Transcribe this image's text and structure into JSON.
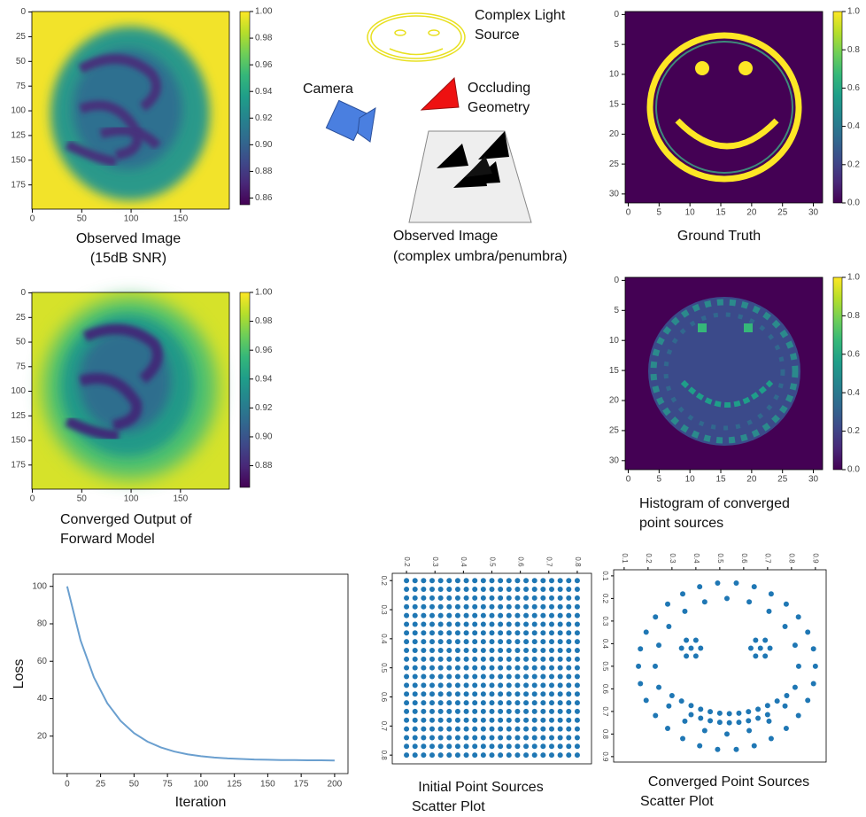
{
  "chart_data": [
    {
      "type": "image",
      "caption": [
        "Observed Image",
        "(15dB SNR)"
      ],
      "xlim": [
        -0.5,
        199.5
      ],
      "ylim": [
        199.5,
        -0.5
      ],
      "xticks": [
        0,
        50,
        100,
        150
      ],
      "yticks": [
        0,
        25,
        50,
        75,
        100,
        125,
        150,
        175
      ],
      "clim": [
        0.855,
        1.0
      ],
      "cticks": [
        0.86,
        0.88,
        {
          "value": 0.9,
          "label": "0.90"
        },
        0.92,
        0.94,
        0.96,
        0.98,
        {
          "value": 1,
          "label": "1.00"
        }
      ]
    },
    {
      "type": "image",
      "caption": [
        "Converged Output of",
        "Forward Model"
      ],
      "xlim": [
        -0.5,
        199.5
      ],
      "ylim": [
        199.5,
        -0.5
      ],
      "xticks": [
        0,
        50,
        100,
        150
      ],
      "yticks": [
        0,
        25,
        50,
        75,
        100,
        125,
        150,
        175
      ],
      "clim": [
        0.865,
        1.0
      ],
      "cticks": [
        0.88,
        {
          "value": 0.9,
          "label": "0.90"
        },
        0.92,
        0.94,
        0.96,
        0.98,
        {
          "value": 1,
          "label": "1.00"
        }
      ]
    },
    {
      "type": "image",
      "caption": [
        "Ground Truth"
      ],
      "xlim": [
        -0.5,
        31.5
      ],
      "ylim": [
        31.5,
        -0.5
      ],
      "xticks": [
        0,
        5,
        10,
        15,
        20,
        25,
        30
      ],
      "yticks": [
        0,
        5,
        10,
        15,
        20,
        25,
        30
      ],
      "clim": [
        0,
        1
      ],
      "cticks": [
        {
          "value": 0,
          "label": "0.0"
        },
        0.2,
        0.4,
        0.6,
        0.8,
        {
          "value": 1,
          "label": "1.0"
        }
      ]
    },
    {
      "type": "image",
      "caption": [
        "Histogram of converged",
        "point sources"
      ],
      "xlim": [
        -0.5,
        31.5
      ],
      "ylim": [
        31.5,
        -0.5
      ],
      "xticks": [
        0,
        5,
        10,
        15,
        20,
        25,
        30
      ],
      "yticks": [
        0,
        5,
        10,
        15,
        20,
        25,
        30
      ],
      "clim": [
        0,
        1
      ],
      "cticks": [
        {
          "value": 0,
          "label": "0.0"
        },
        0.2,
        0.4,
        0.6,
        0.8,
        {
          "value": 1,
          "label": "1.0"
        }
      ]
    },
    {
      "type": "line",
      "xlabel": "Iteration",
      "ylabel": "Loss",
      "color": "#6a9fcf",
      "xlim": [
        -10.5,
        210
      ],
      "ylim": [
        0,
        106.5
      ],
      "xticks": [
        0,
        25,
        50,
        75,
        100,
        125,
        150,
        175,
        200
      ],
      "yticks": [
        20,
        40,
        60,
        80,
        100
      ],
      "x": [
        0,
        10,
        20,
        30,
        40,
        50,
        60,
        70,
        80,
        90,
        100,
        110,
        120,
        130,
        140,
        150,
        160,
        170,
        180,
        190,
        200
      ],
      "y": [
        100,
        71.2,
        51.4,
        37.6,
        28.1,
        21.6,
        17.1,
        14,
        11.8,
        10.3,
        9.3,
        8.6,
        8.1,
        7.8,
        7.5,
        7.4,
        7.2,
        7.2,
        7.1,
        7.1,
        7
      ]
    },
    {
      "type": "scatter",
      "caption": [
        "Initial Point Sources",
        "Scatter Plot"
      ],
      "color": "#1f77b4",
      "xlim": [
        0.15,
        0.85
      ],
      "ylim": [
        0.83,
        0.175
      ],
      "xticks": [
        0.2,
        0.3,
        0.4,
        0.5,
        0.6,
        0.7,
        0.8
      ],
      "yticks": [
        0.2,
        0.3,
        0.4,
        0.5,
        0.6,
        0.7,
        0.8
      ],
      "x": [
        0.2,
        0.2,
        0.2,
        0.2,
        0.2,
        0.2,
        0.2,
        0.2,
        0.2,
        0.2,
        0.2,
        0.2,
        0.2,
        0.2,
        0.2,
        0.2,
        0.2,
        0.2,
        0.2,
        0.2,
        0.2,
        0.23,
        0.23,
        0.23,
        0.23,
        0.23,
        0.23,
        0.23,
        0.23,
        0.23,
        0.23,
        0.23,
        0.23,
        0.23,
        0.23,
        0.23,
        0.23,
        0.23,
        0.23,
        0.23,
        0.23,
        0.23,
        0.26,
        0.26,
        0.26,
        0.26,
        0.26,
        0.26,
        0.26,
        0.26,
        0.26,
        0.26,
        0.26,
        0.26,
        0.26,
        0.26,
        0.26,
        0.26,
        0.26,
        0.26,
        0.26,
        0.26,
        0.26,
        0.29,
        0.29,
        0.29,
        0.29,
        0.29,
        0.29,
        0.29,
        0.29,
        0.29,
        0.29,
        0.29,
        0.29,
        0.29,
        0.29,
        0.29,
        0.29,
        0.29,
        0.29,
        0.29,
        0.29,
        0.29,
        0.32,
        0.32,
        0.32,
        0.32,
        0.32,
        0.32,
        0.32,
        0.32,
        0.32,
        0.32,
        0.32,
        0.32,
        0.32,
        0.32,
        0.32,
        0.32,
        0.32,
        0.32,
        0.32,
        0.32,
        0.32,
        0.35,
        0.35,
        0.35,
        0.35,
        0.35,
        0.35,
        0.35,
        0.35,
        0.35,
        0.35,
        0.35,
        0.35,
        0.35,
        0.35,
        0.35,
        0.35,
        0.35,
        0.35,
        0.35,
        0.35,
        0.35,
        0.38,
        0.38,
        0.38,
        0.38,
        0.38,
        0.38,
        0.38,
        0.38,
        0.38,
        0.38,
        0.38,
        0.38,
        0.38,
        0.38,
        0.38,
        0.38,
        0.38,
        0.38,
        0.38,
        0.38,
        0.38,
        0.41,
        0.41,
        0.41,
        0.41,
        0.41,
        0.41,
        0.41,
        0.41,
        0.41,
        0.41,
        0.41,
        0.41,
        0.41,
        0.41,
        0.41,
        0.41,
        0.41,
        0.41,
        0.41,
        0.41,
        0.41,
        0.44,
        0.44,
        0.44,
        0.44,
        0.44,
        0.44,
        0.44,
        0.44,
        0.44,
        0.44,
        0.44,
        0.44,
        0.44,
        0.44,
        0.44,
        0.44,
        0.44,
        0.44,
        0.44,
        0.44,
        0.44,
        0.47,
        0.47,
        0.47,
        0.47,
        0.47,
        0.47,
        0.47,
        0.47,
        0.47,
        0.47,
        0.47,
        0.47,
        0.47,
        0.47,
        0.47,
        0.47,
        0.47,
        0.47,
        0.47,
        0.47,
        0.47,
        0.5,
        0.5,
        0.5,
        0.5,
        0.5,
        0.5,
        0.5,
        0.5,
        0.5,
        0.5,
        0.5,
        0.5,
        0.5,
        0.5,
        0.5,
        0.5,
        0.5,
        0.5,
        0.5,
        0.5,
        0.5,
        0.53,
        0.53,
        0.53,
        0.53,
        0.53,
        0.53,
        0.53,
        0.53,
        0.53,
        0.53,
        0.53,
        0.53,
        0.53,
        0.53,
        0.53,
        0.53,
        0.53,
        0.53,
        0.53,
        0.53,
        0.53,
        0.56,
        0.56,
        0.56,
        0.56,
        0.56,
        0.56,
        0.56,
        0.56,
        0.56,
        0.56,
        0.56,
        0.56,
        0.56,
        0.56,
        0.56,
        0.56,
        0.56,
        0.56,
        0.56,
        0.56,
        0.56,
        0.59,
        0.59,
        0.59,
        0.59,
        0.59,
        0.59,
        0.59,
        0.59,
        0.59,
        0.59,
        0.59,
        0.59,
        0.59,
        0.59,
        0.59,
        0.59,
        0.59,
        0.59,
        0.59,
        0.59,
        0.59,
        0.62,
        0.62,
        0.62,
        0.62,
        0.62,
        0.62,
        0.62,
        0.62,
        0.62,
        0.62,
        0.62,
        0.62,
        0.62,
        0.62,
        0.62,
        0.62,
        0.62,
        0.62,
        0.62,
        0.62,
        0.62,
        0.65,
        0.65,
        0.65,
        0.65,
        0.65,
        0.65,
        0.65,
        0.65,
        0.65,
        0.65,
        0.65,
        0.65,
        0.65,
        0.65,
        0.65,
        0.65,
        0.65,
        0.65,
        0.65,
        0.65,
        0.65,
        0.68,
        0.68,
        0.68,
        0.68,
        0.68,
        0.68,
        0.68,
        0.68,
        0.68,
        0.68,
        0.68,
        0.68,
        0.68,
        0.68,
        0.68,
        0.68,
        0.68,
        0.68,
        0.68,
        0.68,
        0.68,
        0.71,
        0.71,
        0.71,
        0.71,
        0.71,
        0.71,
        0.71,
        0.71,
        0.71,
        0.71,
        0.71,
        0.71,
        0.71,
        0.71,
        0.71,
        0.71,
        0.71,
        0.71,
        0.71,
        0.71,
        0.71,
        0.74,
        0.74,
        0.74,
        0.74,
        0.74,
        0.74,
        0.74,
        0.74,
        0.74,
        0.74,
        0.74,
        0.74,
        0.74,
        0.74,
        0.74,
        0.74,
        0.74,
        0.74,
        0.74,
        0.74,
        0.74,
        0.77,
        0.77,
        0.77,
        0.77,
        0.77,
        0.77,
        0.77,
        0.77,
        0.77,
        0.77,
        0.77,
        0.77,
        0.77,
        0.77,
        0.77,
        0.77,
        0.77,
        0.77,
        0.77,
        0.77,
        0.77,
        0.8,
        0.8,
        0.8,
        0.8,
        0.8,
        0.8,
        0.8,
        0.8,
        0.8,
        0.8,
        0.8,
        0.8,
        0.8,
        0.8,
        0.8,
        0.8,
        0.8,
        0.8,
        0.8,
        0.8,
        0.8
      ],
      "y": [
        0.2,
        0.23,
        0.26,
        0.29,
        0.32,
        0.35,
        0.38,
        0.41,
        0.44,
        0.47,
        0.5,
        0.53,
        0.56,
        0.59,
        0.62,
        0.65,
        0.68,
        0.71,
        0.74,
        0.77,
        0.8,
        0.2,
        0.23,
        0.26,
        0.29,
        0.32,
        0.35,
        0.38,
        0.41,
        0.44,
        0.47,
        0.5,
        0.53,
        0.56,
        0.59,
        0.62,
        0.65,
        0.68,
        0.71,
        0.74,
        0.77,
        0.8,
        0.2,
        0.23,
        0.26,
        0.29,
        0.32,
        0.35,
        0.38,
        0.41,
        0.44,
        0.47,
        0.5,
        0.53,
        0.56,
        0.59,
        0.62,
        0.65,
        0.68,
        0.71,
        0.74,
        0.77,
        0.8,
        0.2,
        0.23,
        0.26,
        0.29,
        0.32,
        0.35,
        0.38,
        0.41,
        0.44,
        0.47,
        0.5,
        0.53,
        0.56,
        0.59,
        0.62,
        0.65,
        0.68,
        0.71,
        0.74,
        0.77,
        0.8,
        0.2,
        0.23,
        0.26,
        0.29,
        0.32,
        0.35,
        0.38,
        0.41,
        0.44,
        0.47,
        0.5,
        0.53,
        0.56,
        0.59,
        0.62,
        0.65,
        0.68,
        0.71,
        0.74,
        0.77,
        0.8,
        0.2,
        0.23,
        0.26,
        0.29,
        0.32,
        0.35,
        0.38,
        0.41,
        0.44,
        0.47,
        0.5,
        0.53,
        0.56,
        0.59,
        0.62,
        0.65,
        0.68,
        0.71,
        0.74,
        0.77,
        0.8,
        0.2,
        0.23,
        0.26,
        0.29,
        0.32,
        0.35,
        0.38,
        0.41,
        0.44,
        0.47,
        0.5,
        0.53,
        0.56,
        0.59,
        0.62,
        0.65,
        0.68,
        0.71,
        0.74,
        0.77,
        0.8,
        0.2,
        0.23,
        0.26,
        0.29,
        0.32,
        0.35,
        0.38,
        0.41,
        0.44,
        0.47,
        0.5,
        0.53,
        0.56,
        0.59,
        0.62,
        0.65,
        0.68,
        0.71,
        0.74,
        0.77,
        0.8,
        0.2,
        0.23,
        0.26,
        0.29,
        0.32,
        0.35,
        0.38,
        0.41,
        0.44,
        0.47,
        0.5,
        0.53,
        0.56,
        0.59,
        0.62,
        0.65,
        0.68,
        0.71,
        0.74,
        0.77,
        0.8,
        0.2,
        0.23,
        0.26,
        0.29,
        0.32,
        0.35,
        0.38,
        0.41,
        0.44,
        0.47,
        0.5,
        0.53,
        0.56,
        0.59,
        0.62,
        0.65,
        0.68,
        0.71,
        0.74,
        0.77,
        0.8,
        0.2,
        0.23,
        0.26,
        0.29,
        0.32,
        0.35,
        0.38,
        0.41,
        0.44,
        0.47,
        0.5,
        0.53,
        0.56,
        0.59,
        0.62,
        0.65,
        0.68,
        0.71,
        0.74,
        0.77,
        0.8,
        0.2,
        0.23,
        0.26,
        0.29,
        0.32,
        0.35,
        0.38,
        0.41,
        0.44,
        0.47,
        0.5,
        0.53,
        0.56,
        0.59,
        0.62,
        0.65,
        0.68,
        0.71,
        0.74,
        0.77,
        0.8,
        0.2,
        0.23,
        0.26,
        0.29,
        0.32,
        0.35,
        0.38,
        0.41,
        0.44,
        0.47,
        0.5,
        0.53,
        0.56,
        0.59,
        0.62,
        0.65,
        0.68,
        0.71,
        0.74,
        0.77,
        0.8,
        0.2,
        0.23,
        0.26,
        0.29,
        0.32,
        0.35,
        0.38,
        0.41,
        0.44,
        0.47,
        0.5,
        0.53,
        0.56,
        0.59,
        0.62,
        0.65,
        0.68,
        0.71,
        0.74,
        0.77,
        0.8,
        0.2,
        0.23,
        0.26,
        0.29,
        0.32,
        0.35,
        0.38,
        0.41,
        0.44,
        0.47,
        0.5,
        0.53,
        0.56,
        0.59,
        0.62,
        0.65,
        0.68,
        0.71,
        0.74,
        0.77,
        0.8,
        0.2,
        0.23,
        0.26,
        0.29,
        0.32,
        0.35,
        0.38,
        0.41,
        0.44,
        0.47,
        0.5,
        0.53,
        0.56,
        0.59,
        0.62,
        0.65,
        0.68,
        0.71,
        0.74,
        0.77,
        0.8,
        0.2,
        0.23,
        0.26,
        0.29,
        0.32,
        0.35,
        0.38,
        0.41,
        0.44,
        0.47,
        0.5,
        0.53,
        0.56,
        0.59,
        0.62,
        0.65,
        0.68,
        0.71,
        0.74,
        0.77,
        0.8,
        0.2,
        0.23,
        0.26,
        0.29,
        0.32,
        0.35,
        0.38,
        0.41,
        0.44,
        0.47,
        0.5,
        0.53,
        0.56,
        0.59,
        0.62,
        0.65,
        0.68,
        0.71,
        0.74,
        0.77,
        0.8,
        0.2,
        0.23,
        0.26,
        0.29,
        0.32,
        0.35,
        0.38,
        0.41,
        0.44,
        0.47,
        0.5,
        0.53,
        0.56,
        0.59,
        0.62,
        0.65,
        0.68,
        0.71,
        0.74,
        0.77,
        0.8,
        0.2,
        0.23,
        0.26,
        0.29,
        0.32,
        0.35,
        0.38,
        0.41,
        0.44,
        0.47,
        0.5,
        0.53,
        0.56,
        0.59,
        0.62,
        0.65,
        0.68,
        0.71,
        0.74,
        0.77,
        0.8,
        0.2,
        0.23,
        0.26,
        0.29,
        0.32,
        0.35,
        0.38,
        0.41,
        0.44,
        0.47,
        0.5,
        0.53,
        0.56,
        0.59,
        0.62,
        0.65,
        0.68,
        0.71,
        0.74,
        0.77,
        0.8
      ]
    },
    {
      "type": "scatter",
      "caption": [
        "Converged Point Sources",
        "Scatter Plot"
      ],
      "color": "#1f77b4",
      "xlim": [
        0.056,
        0.945
      ],
      "ylim": [
        0.924,
        0.073
      ],
      "xticks": [
        0.1,
        0.2,
        0.3,
        0.4,
        0.5,
        0.6,
        0.7,
        0.8,
        0.9
      ],
      "yticks": [
        0.1,
        0.2,
        0.3,
        0.4,
        0.5,
        0.6,
        0.7,
        0.8,
        0.9
      ],
      "x": [
        0.9,
        0.892,
        0.868,
        0.829,
        0.778,
        0.715,
        0.644,
        0.569,
        0.491,
        0.416,
        0.345,
        0.282,
        0.231,
        0.192,
        0.168,
        0.16,
        0.168,
        0.192,
        0.231,
        0.282,
        0.345,
        0.416,
        0.491,
        0.569,
        0.644,
        0.715,
        0.778,
        0.829,
        0.868,
        0.892,
        0.83,
        0.815,
        0.773,
        0.706,
        0.623,
        0.53,
        0.437,
        0.354,
        0.287,
        0.245,
        0.23,
        0.245,
        0.287,
        0.354,
        0.437,
        0.53,
        0.623,
        0.706,
        0.773,
        0.815,
        0.42,
        0.4,
        0.36,
        0.34,
        0.36,
        0.4,
        0.38,
        0.71,
        0.69,
        0.65,
        0.63,
        0.65,
        0.69,
        0.67,
        0.3,
        0.34,
        0.38,
        0.42,
        0.46,
        0.5,
        0.54,
        0.58,
        0.62,
        0.66,
        0.7,
        0.74,
        0.78,
        0.38,
        0.42,
        0.46,
        0.5,
        0.54,
        0.58,
        0.62,
        0.66,
        0.7
      ],
      "y": [
        0.5,
        0.577,
        0.651,
        0.718,
        0.775,
        0.82,
        0.852,
        0.868,
        0.868,
        0.852,
        0.82,
        0.775,
        0.718,
        0.651,
        0.577,
        0.5,
        0.423,
        0.349,
        0.282,
        0.225,
        0.18,
        0.148,
        0.132,
        0.132,
        0.148,
        0.18,
        0.225,
        0.282,
        0.349,
        0.423,
        0.5,
        0.593,
        0.676,
        0.743,
        0.785,
        0.8,
        0.785,
        0.743,
        0.676,
        0.593,
        0.5,
        0.407,
        0.324,
        0.257,
        0.215,
        0.2,
        0.215,
        0.257,
        0.324,
        0.407,
        0.42,
        0.455,
        0.455,
        0.42,
        0.385,
        0.385,
        0.42,
        0.42,
        0.455,
        0.455,
        0.42,
        0.385,
        0.385,
        0.42,
        0.63,
        0.654,
        0.674,
        0.69,
        0.701,
        0.708,
        0.71,
        0.708,
        0.701,
        0.69,
        0.674,
        0.654,
        0.63,
        0.714,
        0.73,
        0.741,
        0.748,
        0.75,
        0.748,
        0.741,
        0.73,
        0.714
      ]
    }
  ],
  "diagram": {
    "light_source": [
      "Complex Light",
      "Source"
    ],
    "camera": "Camera",
    "occluder": [
      "Occluding",
      "Geometry"
    ],
    "observed": [
      "Observed Image",
      "(complex umbra/penumbra)"
    ]
  }
}
